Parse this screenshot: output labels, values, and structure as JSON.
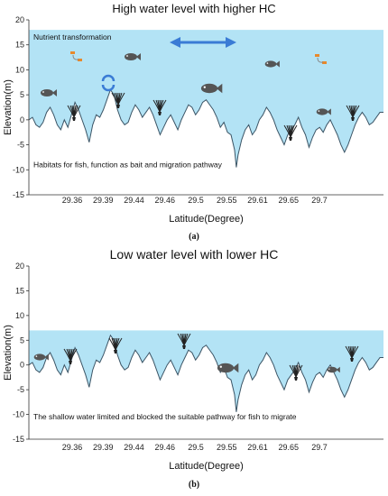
{
  "panels": [
    {
      "title": "High water level with higher HC",
      "sublabel": "(a)",
      "xlabel": "Latitude(Degree)",
      "ylabel": "Elevation(m)",
      "ylim": [
        -15,
        20
      ],
      "yticks": [
        "20",
        "15",
        "10",
        "5",
        "0",
        "-5",
        "-10",
        "-15"
      ],
      "xticks": [
        "29.36",
        "29.39",
        "29.44",
        "29.46",
        "29.5",
        "29.55",
        "29.61",
        "29.65",
        "29.7"
      ],
      "water_level_m": 18,
      "top_note": "Nutrient  transformation",
      "bottom_note": "Habitats for fish, function as bait and migration pathway",
      "icons": [
        "fish-icon",
        "aquatic-plant-icon",
        "nutrient-cycle-icon",
        "migration-arrow-icon"
      ]
    },
    {
      "title": "Low  water level with lower  HC",
      "sublabel": "(b)",
      "xlabel": "Latitude(Degree)",
      "ylabel": "Elevation(m)",
      "ylim": [
        -15,
        20
      ],
      "yticks": [
        "20",
        "15",
        "10",
        "5",
        "0",
        "-5",
        "-10",
        "-15"
      ],
      "xticks": [
        "29.36",
        "29.39",
        "29.44",
        "29.46",
        "29.5",
        "29.55",
        "29.61",
        "29.65",
        "29.7"
      ],
      "water_level_m": 7,
      "bottom_note": "The shallow water  limited and blocked the suitable pathway for fish to migrate",
      "icons": [
        "fish-icon",
        "aquatic-plant-icon"
      ]
    }
  ],
  "colors": {
    "water": "#b3e3f5",
    "terrain": "#3c5566",
    "fish": "#555555",
    "arrow": "#3a7bd5",
    "nutrient": "#e8892b"
  }
}
